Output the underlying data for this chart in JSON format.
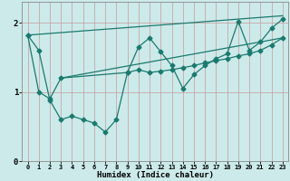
{
  "title": "",
  "xlabel": "Humidex (Indice chaleur)",
  "bg_color": "#cceaea",
  "line_color": "#1a7a6e",
  "grid_color_v": "#c8a0a0",
  "grid_color_h": "#c8a0a0",
  "xlim": [
    -0.5,
    23.5
  ],
  "ylim": [
    0,
    2.3
  ],
  "yticks": [
    0,
    1,
    2
  ],
  "xticks": [
    0,
    1,
    2,
    3,
    4,
    5,
    6,
    7,
    8,
    9,
    10,
    11,
    12,
    13,
    14,
    15,
    16,
    17,
    18,
    19,
    20,
    21,
    22,
    23
  ],
  "line1_x": [
    0,
    1,
    2,
    3,
    4,
    5,
    6,
    7,
    8,
    9,
    10,
    11,
    12,
    13,
    14,
    15,
    16,
    17,
    18,
    19,
    20,
    21,
    22,
    23
  ],
  "line1_y": [
    1.82,
    1.6,
    0.88,
    0.6,
    0.65,
    0.6,
    0.55,
    0.42,
    0.6,
    1.28,
    1.65,
    1.78,
    1.58,
    1.38,
    1.05,
    1.25,
    1.38,
    1.48,
    1.55,
    2.02,
    1.6,
    1.72,
    1.92,
    2.05
  ],
  "line2_x": [
    0,
    1,
    2,
    3,
    9,
    10,
    11,
    12,
    13,
    14,
    15,
    16,
    17,
    18,
    19,
    20,
    21,
    22,
    23
  ],
  "line2_y": [
    1.82,
    1.0,
    0.9,
    1.2,
    1.28,
    1.32,
    1.28,
    1.3,
    1.32,
    1.35,
    1.38,
    1.42,
    1.45,
    1.48,
    1.52,
    1.55,
    1.6,
    1.68,
    1.78
  ],
  "line3_x": [
    0,
    23
  ],
  "line3_y": [
    1.82,
    2.1
  ],
  "line4_x": [
    3,
    23
  ],
  "line4_y": [
    1.2,
    1.78
  ]
}
